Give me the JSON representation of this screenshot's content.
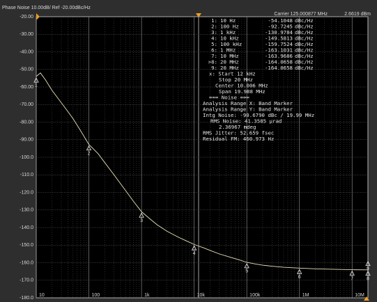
{
  "chart_data": {
    "type": "line",
    "title": "Phase Noise 10.00dB/ Ref -20.00dBc/Hz",
    "carrier": "Carrier 125.000877 MHz",
    "power": "2.6619 dBm",
    "xscale": "log",
    "grid": true,
    "xlim": [
      10,
      20000000
    ],
    "ylim": [
      -180,
      -20
    ],
    "xticks": [
      {
        "value": 10,
        "label": "10"
      },
      {
        "value": 100,
        "label": "100"
      },
      {
        "value": 1000,
        "label": "1k"
      },
      {
        "value": 10000,
        "label": "10k"
      },
      {
        "value": 100000,
        "label": "100k"
      },
      {
        "value": 1000000,
        "label": "1M"
      },
      {
        "value": 10000000,
        "label": "10M"
      }
    ],
    "xminorticks": [
      20,
      30,
      40,
      50,
      60,
      70,
      80,
      90,
      200,
      300,
      400,
      500,
      600,
      700,
      800,
      900,
      2000,
      3000,
      4000,
      5000,
      6000,
      7000,
      8000,
      9000,
      20000,
      30000,
      40000,
      50000,
      60000,
      70000,
      80000,
      90000,
      200000,
      300000,
      400000,
      500000,
      600000,
      700000,
      800000,
      900000,
      2000000,
      3000000,
      4000000,
      5000000,
      6000000,
      7000000,
      8000000,
      9000000
    ],
    "yticks": [
      {
        "value": -20,
        "label": "-20.00"
      },
      {
        "value": -30,
        "label": "-30.00"
      },
      {
        "value": -40,
        "label": "-40.00"
      },
      {
        "value": -50,
        "label": "-50.00"
      },
      {
        "value": -60,
        "label": "-60.00"
      },
      {
        "value": -70,
        "label": "-70.00"
      },
      {
        "value": -80,
        "label": "-80.00"
      },
      {
        "value": -90,
        "label": "-90.00"
      },
      {
        "value": -100,
        "label": "-100.0"
      },
      {
        "value": -110,
        "label": "-110.0"
      },
      {
        "value": -120,
        "label": "-120.0"
      },
      {
        "value": -130,
        "label": "-130.0"
      },
      {
        "value": -140,
        "label": "-140.0"
      },
      {
        "value": -150,
        "label": "-150.0"
      },
      {
        "value": -160,
        "label": "-160.0"
      },
      {
        "value": -170,
        "label": "-170.0"
      },
      {
        "value": -180,
        "label": "-180.0"
      }
    ],
    "series": [
      {
        "color": "#e9e2b8",
        "x": [
          10,
          12,
          15,
          20,
          30,
          40,
          50,
          70,
          100,
          150,
          200,
          300,
          500,
          700,
          1000,
          1500,
          2000,
          3000,
          5000,
          7000,
          10000,
          15000,
          20000,
          30000,
          50000,
          70000,
          100000,
          150000,
          200000,
          300000,
          500000,
          1000000,
          2000000,
          5000000,
          10000000,
          20000000
        ],
        "values": [
          -54,
          -52,
          -56,
          -62,
          -69,
          -74,
          -78,
          -85,
          -92.7,
          -98,
          -103,
          -110,
          -119,
          -125,
          -131,
          -135.5,
          -138.5,
          -142,
          -145.5,
          -147.5,
          -149.6,
          -151.5,
          -153,
          -155,
          -157,
          -158.3,
          -159.8,
          -160.8,
          -161.4,
          -162,
          -162.6,
          -163.1,
          -163.5,
          -163.8,
          -164,
          -164.1
        ]
      }
    ],
    "markers": [
      {
        "name": "1",
        "label": "1:",
        "freq": "10 Hz",
        "x": 10,
        "value": -54.1048,
        "unit": "dBc/Hz"
      },
      {
        "name": "2",
        "label": "2:",
        "freq": "100 Hz",
        "x": 100,
        "value": -92.7245,
        "unit": "dBc/Hz"
      },
      {
        "name": "3",
        "label": "3:",
        "freq": "1 kHz",
        "x": 1000,
        "value": -130.9784,
        "unit": "dBc/Hz"
      },
      {
        "name": "4",
        "label": "4:",
        "freq": "10 kHz",
        "x": 10000,
        "value": -149.5813,
        "unit": "dBc/Hz"
      },
      {
        "name": "5",
        "label": "5:",
        "freq": "100 kHz",
        "x": 100000,
        "value": -159.7524,
        "unit": "dBc/Hz"
      },
      {
        "name": "6",
        "label": "6:",
        "freq": "1 MHz",
        "x": 1000000,
        "value": -163.1031,
        "unit": "dBc/Hz"
      },
      {
        "name": "7",
        "label": "7:",
        "freq": "10 MHz",
        "x": 10000000,
        "value": -163.9686,
        "unit": "dBc/Hz"
      },
      {
        "name": "8",
        "label": ">8:",
        "freq": "20 MHz",
        "x": 20000000,
        "value": -164.0658,
        "unit": "dBc/Hz"
      },
      {
        "name": "9",
        "label": "9:",
        "freq": "20 MHz",
        "x": 20000000,
        "value": -164.0658,
        "unit": "dBc/Hz"
      }
    ],
    "info_lines": [
      "x: Start 12 kHz",
      "Stop 20 MHz",
      "Center 10.006 MHz",
      "Span 19.988 MHz",
      "=== Noise ===",
      "Analysis Range X: Band Marker",
      "Analysis Range Y: Band Marker",
      "Intg Noise: -90.6790 dBc / 19.99 MHz",
      "RMS Noise: 41.3585 µrad",
      "2.36967 mdeg",
      "RMS Jitter: 52.659 fsec",
      "Residual FM: 460.973 Hz"
    ]
  }
}
